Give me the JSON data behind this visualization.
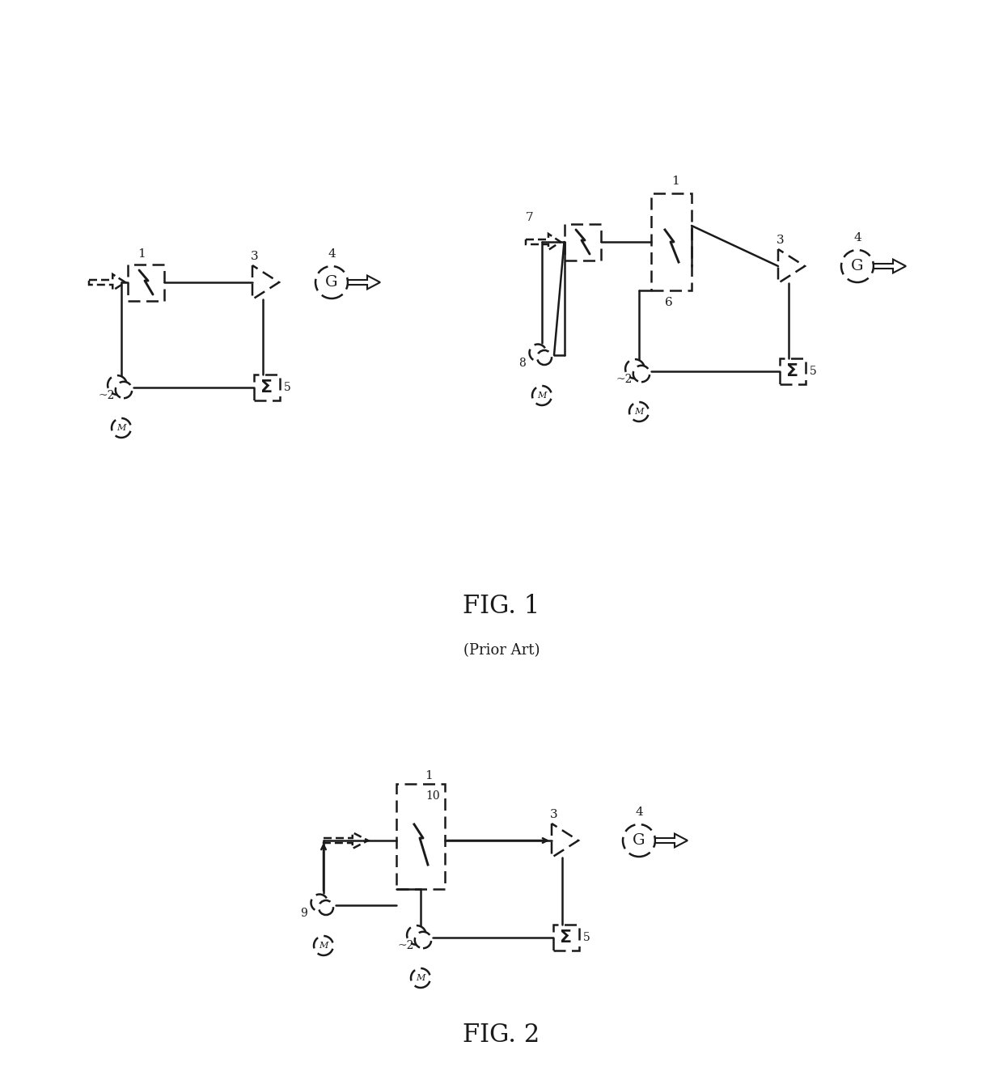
{
  "background_color": "#ffffff",
  "fig_width": 12.4,
  "fig_height": 13.19,
  "fig1_label": "FIG. 1",
  "fig1_sublabel": "(Prior Art)",
  "fig2_label": "FIG. 2",
  "line_color": "#1a1a1a",
  "line_width": 1.8,
  "dashed_style": [
    6,
    3
  ]
}
